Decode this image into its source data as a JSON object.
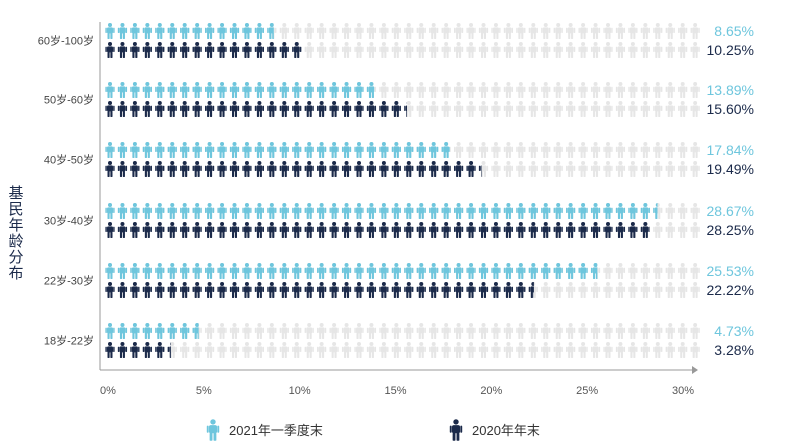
{
  "chart_data": {
    "type": "bar",
    "orientation": "horizontal",
    "ylabel": "基民年龄分布",
    "categories": [
      "60岁-100岁",
      "50岁-60岁",
      "40岁-50岁",
      "30岁-40岁",
      "22岁-30岁",
      "18岁-22岁"
    ],
    "series": [
      {
        "name": "2021年一季度末",
        "color": "#6ec6dd",
        "values": [
          8.65,
          13.89,
          17.84,
          28.67,
          25.53,
          4.73
        ],
        "labels": [
          "8.65%",
          "13.89%",
          "17.84%",
          "28.67%",
          "25.53%",
          "4.73%"
        ]
      },
      {
        "name": "2020年年末",
        "color": "#1b2a4a",
        "values": [
          10.25,
          15.6,
          19.49,
          28.25,
          22.22,
          3.28
        ],
        "labels": [
          "10.25%",
          "15.60%",
          "19.49%",
          "28.25%",
          "22.22%",
          "3.28%"
        ]
      }
    ],
    "xlim": [
      0,
      30
    ],
    "xticks": [
      0,
      5,
      10,
      15,
      20,
      25,
      30
    ],
    "xtick_labels": [
      "0%",
      "5%",
      "10%",
      "15%",
      "20%",
      "25%",
      "30%"
    ],
    "background_icon_color": "#e6e6e6",
    "legend_position": "bottom",
    "grid": false
  }
}
